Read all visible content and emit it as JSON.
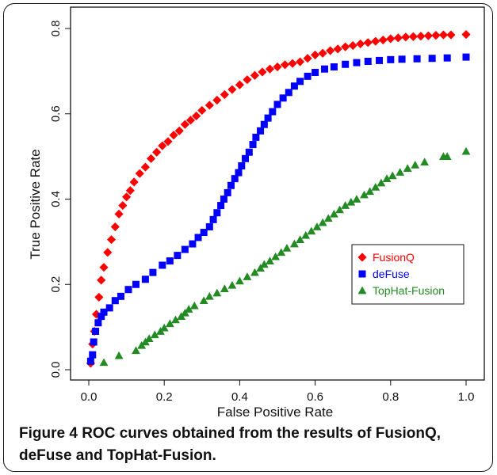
{
  "chart_data": {
    "type": "scatter",
    "xlabel": "False Positive Rate",
    "ylabel": "True Positive Rate",
    "xlim": [
      0,
      1
    ],
    "ylim": [
      0,
      0.8
    ],
    "x_ticks": [
      "0.0",
      "0.2",
      "0.4",
      "0.6",
      "0.8",
      "1.0"
    ],
    "y_ticks": [
      "0.0",
      "0.2",
      "0.4",
      "0.6",
      "0.8"
    ],
    "grid": false,
    "legend_position": "middle-right",
    "series": [
      {
        "name": "FusionQ",
        "marker": "diamond",
        "color": "#ff0000",
        "points": [
          [
            0.005,
            0.015
          ],
          [
            0.01,
            0.06
          ],
          [
            0.015,
            0.09
          ],
          [
            0.02,
            0.13
          ],
          [
            0.027,
            0.17
          ],
          [
            0.033,
            0.21
          ],
          [
            0.04,
            0.24
          ],
          [
            0.05,
            0.275
          ],
          [
            0.06,
            0.305
          ],
          [
            0.07,
            0.335
          ],
          [
            0.08,
            0.365
          ],
          [
            0.09,
            0.385
          ],
          [
            0.1,
            0.405
          ],
          [
            0.11,
            0.42
          ],
          [
            0.12,
            0.44
          ],
          [
            0.135,
            0.46
          ],
          [
            0.15,
            0.475
          ],
          [
            0.165,
            0.495
          ],
          [
            0.18,
            0.51
          ],
          [
            0.195,
            0.525
          ],
          [
            0.21,
            0.535
          ],
          [
            0.225,
            0.55
          ],
          [
            0.24,
            0.56
          ],
          [
            0.255,
            0.575
          ],
          [
            0.27,
            0.585
          ],
          [
            0.285,
            0.595
          ],
          [
            0.3,
            0.608
          ],
          [
            0.32,
            0.62
          ],
          [
            0.34,
            0.632
          ],
          [
            0.36,
            0.645
          ],
          [
            0.38,
            0.657
          ],
          [
            0.4,
            0.668
          ],
          [
            0.42,
            0.68
          ],
          [
            0.44,
            0.69
          ],
          [
            0.46,
            0.698
          ],
          [
            0.48,
            0.705
          ],
          [
            0.5,
            0.71
          ],
          [
            0.52,
            0.715
          ],
          [
            0.54,
            0.718
          ],
          [
            0.56,
            0.722
          ],
          [
            0.58,
            0.73
          ],
          [
            0.6,
            0.738
          ],
          [
            0.62,
            0.742
          ],
          [
            0.64,
            0.748
          ],
          [
            0.66,
            0.752
          ],
          [
            0.68,
            0.757
          ],
          [
            0.7,
            0.76
          ],
          [
            0.72,
            0.764
          ],
          [
            0.74,
            0.767
          ],
          [
            0.76,
            0.77
          ],
          [
            0.78,
            0.773
          ],
          [
            0.8,
            0.776
          ],
          [
            0.82,
            0.778
          ],
          [
            0.84,
            0.78
          ],
          [
            0.86,
            0.781
          ],
          [
            0.88,
            0.782
          ],
          [
            0.9,
            0.783
          ],
          [
            0.92,
            0.784
          ],
          [
            0.94,
            0.785
          ],
          [
            0.96,
            0.785
          ],
          [
            1.0,
            0.786
          ]
        ]
      },
      {
        "name": "deFuse",
        "marker": "square",
        "color": "#0000ff",
        "points": [
          [
            0.005,
            0.02
          ],
          [
            0.01,
            0.035
          ],
          [
            0.013,
            0.065
          ],
          [
            0.018,
            0.09
          ],
          [
            0.025,
            0.11
          ],
          [
            0.033,
            0.125
          ],
          [
            0.04,
            0.135
          ],
          [
            0.055,
            0.145
          ],
          [
            0.07,
            0.162
          ],
          [
            0.085,
            0.172
          ],
          [
            0.105,
            0.188
          ],
          [
            0.125,
            0.2
          ],
          [
            0.15,
            0.212
          ],
          [
            0.17,
            0.228
          ],
          [
            0.195,
            0.245
          ],
          [
            0.215,
            0.255
          ],
          [
            0.235,
            0.268
          ],
          [
            0.255,
            0.282
          ],
          [
            0.275,
            0.295
          ],
          [
            0.29,
            0.31
          ],
          [
            0.305,
            0.322
          ],
          [
            0.32,
            0.335
          ],
          [
            0.33,
            0.352
          ],
          [
            0.34,
            0.368
          ],
          [
            0.35,
            0.385
          ],
          [
            0.358,
            0.4
          ],
          [
            0.368,
            0.415
          ],
          [
            0.377,
            0.432
          ],
          [
            0.387,
            0.448
          ],
          [
            0.397,
            0.462
          ],
          [
            0.405,
            0.478
          ],
          [
            0.415,
            0.495
          ],
          [
            0.425,
            0.51
          ],
          [
            0.435,
            0.528
          ],
          [
            0.443,
            0.545
          ],
          [
            0.455,
            0.56
          ],
          [
            0.465,
            0.575
          ],
          [
            0.475,
            0.59
          ],
          [
            0.487,
            0.605
          ],
          [
            0.5,
            0.622
          ],
          [
            0.515,
            0.637
          ],
          [
            0.53,
            0.65
          ],
          [
            0.545,
            0.665
          ],
          [
            0.56,
            0.676
          ],
          [
            0.58,
            0.688
          ],
          [
            0.6,
            0.697
          ],
          [
            0.625,
            0.705
          ],
          [
            0.65,
            0.71
          ],
          [
            0.68,
            0.716
          ],
          [
            0.71,
            0.72
          ],
          [
            0.74,
            0.723
          ],
          [
            0.77,
            0.725
          ],
          [
            0.8,
            0.727
          ],
          [
            0.83,
            0.728
          ],
          [
            0.87,
            0.729
          ],
          [
            0.91,
            0.73
          ],
          [
            0.95,
            0.731
          ],
          [
            1.0,
            0.733
          ]
        ]
      },
      {
        "name": "TopHat-Fusion",
        "marker": "triangle",
        "color": "#228b22",
        "points": [
          [
            0.04,
            0.017
          ],
          [
            0.08,
            0.033
          ],
          [
            0.125,
            0.045
          ],
          [
            0.14,
            0.057
          ],
          [
            0.15,
            0.065
          ],
          [
            0.16,
            0.073
          ],
          [
            0.175,
            0.082
          ],
          [
            0.19,
            0.09
          ],
          [
            0.2,
            0.098
          ],
          [
            0.215,
            0.108
          ],
          [
            0.23,
            0.117
          ],
          [
            0.245,
            0.125
          ],
          [
            0.255,
            0.133
          ],
          [
            0.265,
            0.142
          ],
          [
            0.28,
            0.15
          ],
          [
            0.305,
            0.162
          ],
          [
            0.32,
            0.172
          ],
          [
            0.34,
            0.18
          ],
          [
            0.36,
            0.19
          ],
          [
            0.38,
            0.198
          ],
          [
            0.4,
            0.208
          ],
          [
            0.42,
            0.218
          ],
          [
            0.44,
            0.228
          ],
          [
            0.455,
            0.238
          ],
          [
            0.465,
            0.247
          ],
          [
            0.48,
            0.255
          ],
          [
            0.495,
            0.265
          ],
          [
            0.51,
            0.275
          ],
          [
            0.525,
            0.285
          ],
          [
            0.545,
            0.295
          ],
          [
            0.56,
            0.305
          ],
          [
            0.575,
            0.315
          ],
          [
            0.59,
            0.325
          ],
          [
            0.605,
            0.335
          ],
          [
            0.62,
            0.345
          ],
          [
            0.635,
            0.355
          ],
          [
            0.65,
            0.365
          ],
          [
            0.665,
            0.375
          ],
          [
            0.68,
            0.385
          ],
          [
            0.695,
            0.393
          ],
          [
            0.71,
            0.4
          ],
          [
            0.73,
            0.41
          ],
          [
            0.745,
            0.418
          ],
          [
            0.76,
            0.428
          ],
          [
            0.775,
            0.438
          ],
          [
            0.79,
            0.448
          ],
          [
            0.805,
            0.455
          ],
          [
            0.825,
            0.463
          ],
          [
            0.845,
            0.472
          ],
          [
            0.865,
            0.48
          ],
          [
            0.89,
            0.487
          ],
          [
            0.94,
            0.5
          ],
          [
            0.95,
            0.5
          ],
          [
            1.0,
            0.512
          ]
        ]
      }
    ]
  },
  "caption": {
    "label": "Figure 4",
    "text": "ROC curves obtained from the results of FusionQ, deFuse and TopHat-Fusion."
  }
}
